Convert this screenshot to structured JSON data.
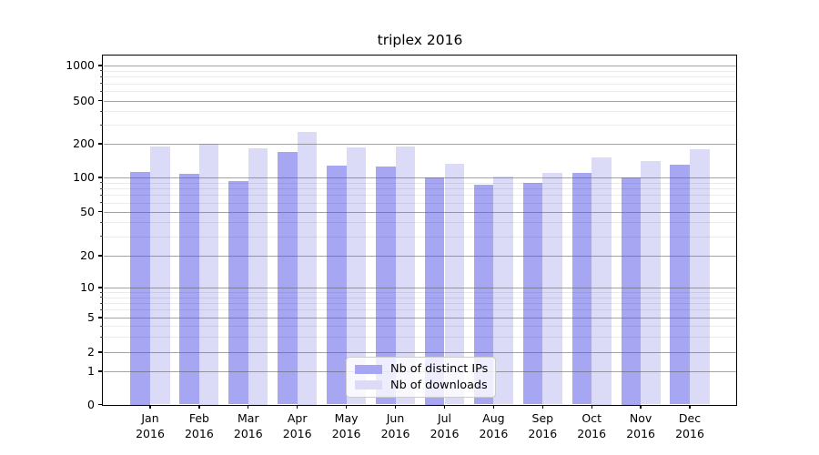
{
  "title": "triplex 2016",
  "chart_data": {
    "type": "bar",
    "title": "triplex 2016",
    "categories": [
      "Jan",
      "Feb",
      "Mar",
      "Apr",
      "May",
      "Jun",
      "Jul",
      "Aug",
      "Sep",
      "Oct",
      "Nov",
      "Dec"
    ],
    "category_year_label": "2016",
    "series": [
      {
        "name": "Nb of distinct IPs",
        "color": "#a6a6f3",
        "values": [
          112,
          108,
          93,
          170,
          128,
          126,
          101,
          86,
          89,
          109,
          101,
          129
        ]
      },
      {
        "name": "Nb of downloads",
        "color": "#dbdbf8",
        "values": [
          188,
          202,
          184,
          257,
          185,
          188,
          133,
          102,
          110,
          151,
          139,
          180
        ]
      }
    ],
    "xlabel": "",
    "ylabel": "",
    "yscale": "symlog",
    "yticks": [
      0,
      1,
      2,
      5,
      10,
      20,
      50,
      100,
      200,
      500,
      1000
    ],
    "yticks_minor": [
      3,
      4,
      6,
      7,
      8,
      9,
      30,
      40,
      60,
      70,
      80,
      90,
      300,
      400,
      600,
      700,
      800,
      900
    ],
    "ylim": [
      0,
      1300
    ],
    "grid": "horizontal major and minor, drawn over bars",
    "legend_position": "lower center"
  }
}
